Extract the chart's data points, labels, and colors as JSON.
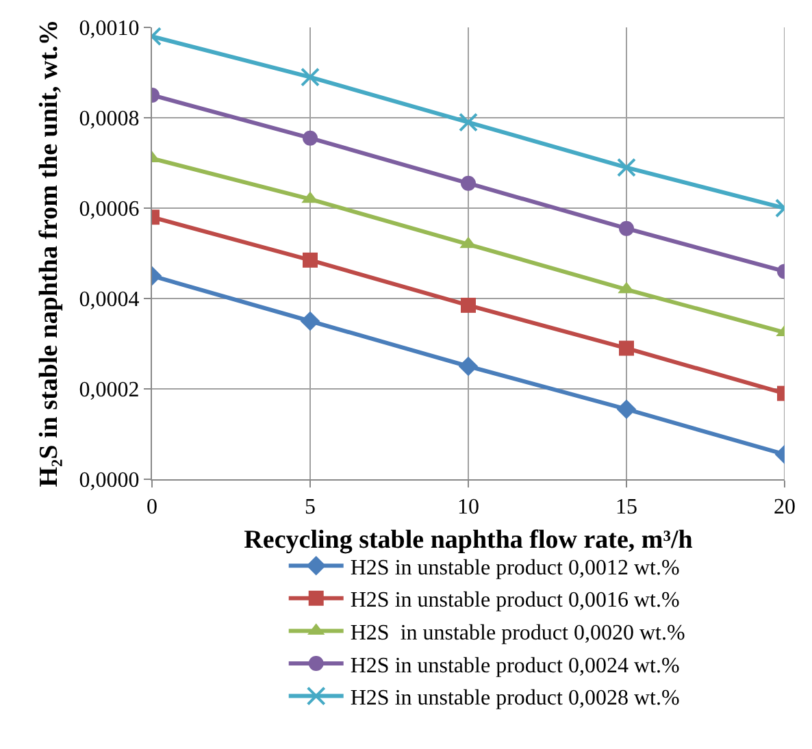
{
  "chart_data": {
    "type": "line",
    "xlabel": "Recycling stable naphtha flow rate, m³/h",
    "ylabel": "H₂S in stable naphtha from the unit, wt.%",
    "x": [
      0,
      5,
      10,
      15,
      20
    ],
    "series": [
      {
        "name": "H2S in unstable product 0,0012 wt.%",
        "color": "#4a7ebb",
        "marker": "diamond",
        "values": [
          0.00045,
          0.00035,
          0.00025,
          0.000155,
          5.5e-05
        ]
      },
      {
        "name": "H2S in unstable product 0,0016 wt.%",
        "color": "#be4b48",
        "marker": "square",
        "values": [
          0.00058,
          0.000485,
          0.000385,
          0.00029,
          0.00019
        ]
      },
      {
        "name": "H2S  in unstable product 0,0020 wt.%",
        "color": "#98b954",
        "marker": "triangle",
        "values": [
          0.00071,
          0.00062,
          0.00052,
          0.00042,
          0.000325
        ]
      },
      {
        "name": "H2S in unstable product 0,0024 wt.%",
        "color": "#7d5fa0",
        "marker": "circle",
        "values": [
          0.00085,
          0.000755,
          0.000655,
          0.000555,
          0.00046
        ]
      },
      {
        "name": "H2S in unstable product 0,0028 wt.%",
        "color": "#46aac5",
        "marker": "cross",
        "values": [
          0.00098,
          0.00089,
          0.00079,
          0.00069,
          0.0006
        ]
      }
    ],
    "xlim": [
      0,
      20
    ],
    "xticks": [
      0,
      5,
      10,
      15,
      20
    ],
    "ylim": [
      0,
      0.001
    ],
    "yticks": [
      {
        "value": 0,
        "label": "0,0000"
      },
      {
        "value": 0.0002,
        "label": "0,0002"
      },
      {
        "value": 0.0004,
        "label": "0,0004"
      },
      {
        "value": 0.0006,
        "label": "0,0006"
      },
      {
        "value": 0.0008,
        "label": "0,0008"
      },
      {
        "value": 0.001,
        "label": "0,0010"
      }
    ],
    "grid": true,
    "legend": "bottom",
    "line_style": "solid"
  }
}
